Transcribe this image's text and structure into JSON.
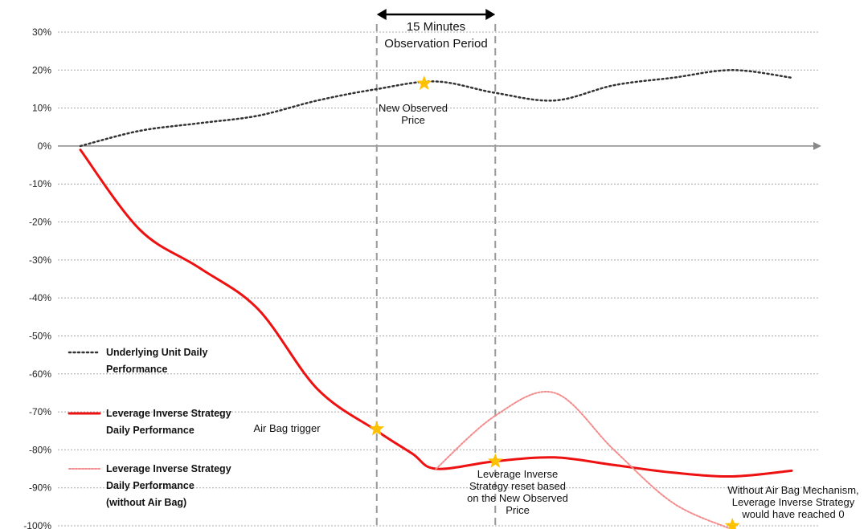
{
  "chart_data": {
    "type": "line",
    "y_ticks": [
      "30%",
      "20%",
      "10%",
      "0%",
      "-10%",
      "-20%",
      "-30%",
      "-40%",
      "-50%",
      "-60%",
      "-70%",
      "-80%",
      "-90%",
      "-100%"
    ],
    "ylim": [
      -100,
      30
    ],
    "grid": true,
    "legend_position": "left",
    "series": [
      {
        "name": "Underlying Unit Daily Performance",
        "style": "dotted",
        "color": "#333333",
        "x": [
          0,
          5,
          10,
          15,
          20,
          25,
          30,
          35,
          40,
          45,
          50,
          55,
          60
        ],
        "values": [
          0,
          4,
          6,
          8,
          12,
          15,
          17,
          14,
          12,
          16,
          18,
          20,
          18
        ]
      },
      {
        "name": "Leverage Inverse Strategy Daily Performance",
        "style": "solid",
        "color": "#ee1111",
        "x": [
          0,
          5,
          10,
          15,
          20,
          25,
          28,
          30,
          35,
          40,
          45,
          50,
          55,
          60
        ],
        "values": [
          -1,
          -22,
          -32,
          -43,
          -64,
          -75,
          -81,
          -85,
          -83,
          -82,
          -84,
          -86,
          -87,
          -85.5
        ]
      },
      {
        "name": "Leverage Inverse Strategy Daily Performance (without Air Bag)",
        "style": "dotted",
        "color": "#f58a8a",
        "x": [
          30,
          35,
          40,
          45,
          50,
          55
        ],
        "values": [
          -85,
          -71,
          -65,
          -80,
          -94,
          -101
        ]
      }
    ],
    "observation_period": {
      "start_x": 25,
      "end_x": 35,
      "label_line1": "15 Minutes",
      "label_line2": "Observation Period"
    },
    "annotations": [
      {
        "id": "observed",
        "lines": [
          "New Observed",
          "Price"
        ]
      },
      {
        "id": "airbag",
        "lines": [
          "Air Bag trigger"
        ]
      },
      {
        "id": "reset",
        "lines": [
          "Leverage Inverse",
          "Strategy reset based",
          "on the New Observed",
          "Price"
        ]
      },
      {
        "id": "without",
        "lines": [
          "Without Air Bag Mechanism,",
          "Leverage Inverse Strategy",
          "would have reached 0"
        ]
      }
    ],
    "markers": [
      {
        "id": "observed",
        "x": 29,
        "y": 16.5
      },
      {
        "id": "airbag",
        "x": 25,
        "y": -74.5
      },
      {
        "id": "reset",
        "x": 35,
        "y": -83
      },
      {
        "id": "without",
        "x": 55,
        "y": -100
      }
    ],
    "legend": [
      {
        "lines": [
          "Underlying Unit Daily",
          "Performance"
        ]
      },
      {
        "lines": [
          "Leverage Inverse Strategy",
          "Daily Performance"
        ]
      },
      {
        "lines": [
          "Leverage Inverse Strategy",
          "Daily Performance",
          "(without Air Bag)"
        ]
      }
    ],
    "colors": {
      "marker": "#ffc000",
      "grid": "#a8a8a8",
      "vline": "#999999",
      "axis": "#888888"
    }
  }
}
